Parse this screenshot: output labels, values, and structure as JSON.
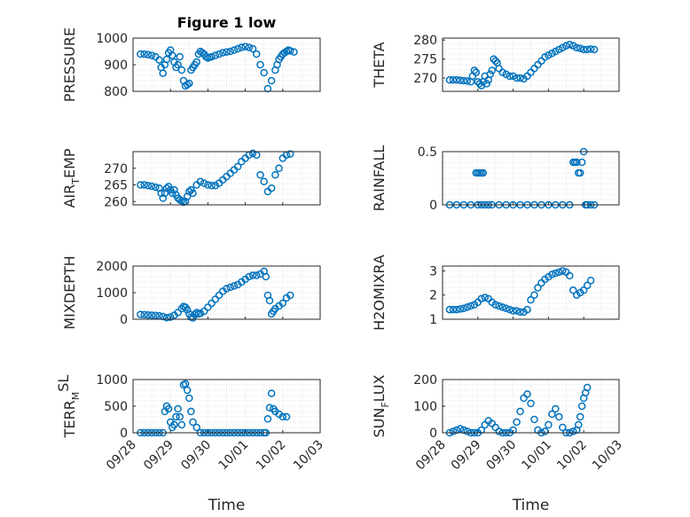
{
  "chart_data": [
    {
      "type": "scatter",
      "title": "Figure 1 low",
      "ylabel": "PRESSURE",
      "ylabel_parts": [
        {
          "t": "PRESSURE",
          "s": "n"
        }
      ],
      "xlabel": "",
      "ylim": [
        800,
        1000
      ],
      "yticks": [
        "800",
        "900",
        "1000"
      ],
      "ytick_values": [
        800,
        900,
        1000
      ],
      "xlim": [
        0,
        5
      ],
      "xticks": [],
      "grid": true,
      "x": [
        0.2,
        0.3,
        0.4,
        0.5,
        0.6,
        0.7,
        0.75,
        0.8,
        0.85,
        0.9,
        0.95,
        1.0,
        1.05,
        1.1,
        1.15,
        1.2,
        1.25,
        1.3,
        1.35,
        1.4,
        1.45,
        1.5,
        1.55,
        1.6,
        1.65,
        1.7,
        1.75,
        1.8,
        1.85,
        1.9,
        1.95,
        2.0,
        2.05,
        2.1,
        2.2,
        2.3,
        2.4,
        2.5,
        2.6,
        2.7,
        2.8,
        2.9,
        3.0,
        3.1,
        3.2,
        3.3,
        3.4,
        3.5,
        3.6,
        3.7,
        3.8,
        3.85,
        3.9,
        3.95,
        4.0,
        4.05,
        4.1,
        4.15,
        4.2,
        4.3
      ],
      "y": [
        940,
        940,
        938,
        935,
        930,
        918,
        890,
        868,
        900,
        920,
        945,
        955,
        935,
        910,
        890,
        900,
        930,
        880,
        840,
        820,
        825,
        830,
        880,
        890,
        900,
        910,
        940,
        950,
        945,
        940,
        930,
        925,
        928,
        930,
        935,
        940,
        945,
        948,
        950,
        955,
        960,
        965,
        968,
        965,
        960,
        940,
        900,
        870,
        810,
        840,
        880,
        900,
        920,
        930,
        940,
        945,
        950,
        955,
        952,
        948
      ]
    },
    {
      "type": "scatter",
      "title": "",
      "ylabel": "THETA",
      "ylabel_parts": [
        {
          "t": "THETA",
          "s": "n"
        }
      ],
      "xlabel": "",
      "ylim": [
        266.5,
        280.5
      ],
      "yticks": [
        "270",
        "275",
        "280"
      ],
      "ytick_values": [
        270,
        275,
        280
      ],
      "xlim": [
        0,
        5
      ],
      "xticks": [],
      "grid": true,
      "x": [
        0.2,
        0.3,
        0.4,
        0.5,
        0.6,
        0.7,
        0.8,
        0.85,
        0.9,
        0.95,
        1.0,
        1.05,
        1.1,
        1.15,
        1.2,
        1.25,
        1.3,
        1.35,
        1.4,
        1.45,
        1.5,
        1.55,
        1.6,
        1.7,
        1.8,
        1.9,
        2.0,
        2.1,
        2.2,
        2.3,
        2.4,
        2.5,
        2.6,
        2.7,
        2.8,
        2.9,
        3.0,
        3.1,
        3.2,
        3.3,
        3.4,
        3.5,
        3.6,
        3.7,
        3.8,
        3.9,
        4.0,
        4.1,
        4.2,
        4.3
      ],
      "y": [
        269.5,
        269.5,
        269.5,
        269.4,
        269.3,
        269.2,
        269.0,
        270.5,
        272.0,
        271.5,
        269.0,
        268.5,
        268.0,
        269.0,
        270.5,
        268.5,
        269.5,
        271.0,
        272.0,
        275.0,
        274.5,
        274.0,
        272.5,
        271.5,
        271.0,
        270.5,
        270.5,
        270.0,
        270.0,
        269.8,
        270.5,
        271.5,
        272.5,
        273.5,
        274.5,
        275.5,
        276.0,
        276.5,
        277.0,
        277.5,
        278.0,
        278.5,
        278.8,
        278.5,
        278.0,
        277.8,
        277.5,
        277.5,
        277.6,
        277.5
      ]
    },
    {
      "type": "scatter",
      "title": "",
      "ylabel": "AIR_TEMP",
      "ylabel_parts": [
        {
          "t": "AIR",
          "s": "n"
        },
        {
          "t": "T",
          "s": "sub"
        },
        {
          "t": "EMP",
          "s": "n"
        }
      ],
      "xlabel": "",
      "ylim": [
        259,
        275
      ],
      "yticks": [
        "260",
        "265",
        "270"
      ],
      "ytick_values": [
        260,
        265,
        270
      ],
      "xlim": [
        0,
        5
      ],
      "xticks": [],
      "grid": true,
      "x": [
        0.2,
        0.3,
        0.4,
        0.5,
        0.6,
        0.7,
        0.75,
        0.8,
        0.85,
        0.9,
        0.95,
        1.0,
        1.05,
        1.1,
        1.15,
        1.2,
        1.25,
        1.3,
        1.35,
        1.4,
        1.45,
        1.5,
        1.55,
        1.6,
        1.7,
        1.8,
        1.9,
        2.0,
        2.1,
        2.2,
        2.3,
        2.4,
        2.5,
        2.6,
        2.7,
        2.8,
        2.9,
        3.0,
        3.1,
        3.2,
        3.3,
        3.4,
        3.5,
        3.6,
        3.7,
        3.8,
        3.9,
        4.0,
        4.1,
        4.2
      ],
      "y": [
        265,
        265,
        264.8,
        264.6,
        264.3,
        264.0,
        262.5,
        261.0,
        262.5,
        264.0,
        264.5,
        263.5,
        262.5,
        263.5,
        262.0,
        261.0,
        260.5,
        260.2,
        259.8,
        260.0,
        261.5,
        263.0,
        263.5,
        262.5,
        265.0,
        266.0,
        265.5,
        265.0,
        264.8,
        264.8,
        265.5,
        266.5,
        267.5,
        268.5,
        269.5,
        270.5,
        272.0,
        273.0,
        274.0,
        274.5,
        274.0,
        268.0,
        266.0,
        263.0,
        264.0,
        268.0,
        270.0,
        273.0,
        274.0,
        274.3
      ]
    },
    {
      "type": "scatter",
      "title": "",
      "ylabel": "RAINFALL",
      "ylabel_parts": [
        {
          "t": "RAINFALL",
          "s": "n"
        }
      ],
      "xlabel": "",
      "ylim": [
        0,
        0.5
      ],
      "yticks": [
        "0",
        "0.5"
      ],
      "ytick_values": [
        0,
        0.5
      ],
      "xlim": [
        0,
        5
      ],
      "xticks": [],
      "grid": true,
      "x": [
        0.2,
        0.4,
        0.6,
        0.8,
        1.0,
        1.1,
        1.2,
        1.3,
        1.4,
        1.6,
        1.8,
        2.0,
        2.2,
        2.4,
        2.6,
        2.8,
        3.0,
        3.2,
        3.4,
        3.6,
        3.7,
        3.75,
        3.8,
        3.85,
        3.9,
        3.95,
        4.0,
        4.05,
        4.1,
        4.2,
        4.3,
        0.95,
        1.0,
        1.05,
        1.1,
        1.15
      ],
      "y": [
        0,
        0,
        0,
        0,
        0,
        0,
        0,
        0,
        0,
        0,
        0,
        0,
        0,
        0,
        0,
        0,
        0,
        0,
        0,
        0,
        0.4,
        0.4,
        0.4,
        0.3,
        0.3,
        0.4,
        0.5,
        0,
        0,
        0,
        0,
        0.3,
        0.3,
        0.3,
        0.3,
        0.3
      ]
    },
    {
      "type": "scatter",
      "title": "",
      "ylabel": "MIXDEPTH",
      "ylabel_parts": [
        {
          "t": "MIXDEPTH",
          "s": "n"
        }
      ],
      "xlabel": "",
      "ylim": [
        0,
        2000
      ],
      "yticks": [
        "0",
        "1000",
        "2000"
      ],
      "ytick_values": [
        0,
        1000,
        2000
      ],
      "xlim": [
        0,
        5
      ],
      "xticks": [],
      "grid": true,
      "x": [
        0.2,
        0.3,
        0.4,
        0.5,
        0.6,
        0.7,
        0.8,
        0.9,
        1.0,
        1.1,
        1.2,
        1.3,
        1.35,
        1.4,
        1.45,
        1.5,
        1.55,
        1.6,
        1.65,
        1.7,
        1.75,
        1.8,
        1.9,
        2.0,
        2.1,
        2.2,
        2.3,
        2.4,
        2.5,
        2.6,
        2.7,
        2.8,
        2.9,
        3.0,
        3.1,
        3.2,
        3.3,
        3.4,
        3.5,
        3.55,
        3.6,
        3.65,
        3.7,
        3.75,
        3.8,
        3.9,
        4.0,
        4.1,
        4.2
      ],
      "y": [
        180,
        170,
        160,
        150,
        140,
        130,
        100,
        60,
        80,
        150,
        250,
        400,
        480,
        450,
        350,
        200,
        80,
        50,
        180,
        250,
        200,
        220,
        300,
        450,
        600,
        750,
        900,
        1050,
        1150,
        1200,
        1250,
        1300,
        1400,
        1500,
        1600,
        1650,
        1650,
        1700,
        1800,
        1600,
        900,
        700,
        200,
        300,
        400,
        500,
        600,
        800,
        900
      ]
    },
    {
      "type": "scatter",
      "title": "",
      "ylabel": "H2OMIXRA",
      "ylabel_parts": [
        {
          "t": "H2OMIXRA",
          "s": "n"
        }
      ],
      "xlabel": "",
      "ylim": [
        1,
        3.2
      ],
      "yticks": [
        "1",
        "2",
        "3"
      ],
      "ytick_values": [
        1,
        2,
        3
      ],
      "xlim": [
        0,
        5
      ],
      "xticks": [],
      "grid": true,
      "x": [
        0.2,
        0.3,
        0.4,
        0.5,
        0.6,
        0.7,
        0.8,
        0.9,
        1.0,
        1.1,
        1.2,
        1.3,
        1.4,
        1.5,
        1.6,
        1.7,
        1.8,
        1.9,
        2.0,
        2.1,
        2.2,
        2.3,
        2.4,
        2.5,
        2.6,
        2.7,
        2.8,
        2.9,
        3.0,
        3.1,
        3.2,
        3.3,
        3.4,
        3.5,
        3.6,
        3.7,
        3.8,
        3.9,
        4.0,
        4.1,
        4.2
      ],
      "y": [
        1.4,
        1.4,
        1.4,
        1.42,
        1.45,
        1.5,
        1.55,
        1.6,
        1.7,
        1.85,
        1.9,
        1.85,
        1.7,
        1.6,
        1.55,
        1.5,
        1.45,
        1.4,
        1.35,
        1.35,
        1.3,
        1.3,
        1.4,
        1.8,
        2.0,
        2.3,
        2.5,
        2.65,
        2.75,
        2.85,
        2.9,
        2.95,
        3.0,
        2.95,
        2.8,
        2.2,
        2.0,
        2.1,
        2.2,
        2.4,
        2.6
      ]
    },
    {
      "type": "scatter",
      "title": "",
      "ylabel": "TERR_MSL",
      "ylabel_parts": [
        {
          "t": "TERR",
          "s": "n"
        },
        {
          "t": "M",
          "s": "sub"
        },
        {
          "t": "SL",
          "s": "sup"
        }
      ],
      "xlabel": "Time",
      "ylim": [
        0,
        1000
      ],
      "yticks": [
        "0",
        "500",
        "1000"
      ],
      "ytick_values": [
        0,
        500,
        1000
      ],
      "xlim": [
        0,
        5
      ],
      "xticks": [
        "09/28",
        "09/29",
        "09/30",
        "10/01",
        "10/02",
        "10/03"
      ],
      "grid": true,
      "x": [
        0.2,
        0.3,
        0.4,
        0.5,
        0.6,
        0.7,
        0.8,
        0.85,
        0.9,
        0.95,
        1.0,
        1.05,
        1.1,
        1.15,
        1.2,
        1.25,
        1.3,
        1.35,
        1.4,
        1.45,
        1.5,
        1.55,
        1.6,
        1.7,
        1.8,
        1.9,
        2.0,
        2.1,
        2.2,
        2.3,
        2.4,
        2.5,
        2.6,
        2.7,
        2.8,
        2.9,
        3.0,
        3.1,
        3.2,
        3.3,
        3.4,
        3.5,
        3.55,
        3.6,
        3.65,
        3.7,
        3.75,
        3.8,
        3.9,
        4.0,
        4.1
      ],
      "y": [
        0,
        0,
        0,
        0,
        0,
        0,
        0,
        400,
        500,
        450,
        200,
        100,
        150,
        300,
        450,
        300,
        150,
        900,
        920,
        800,
        650,
        400,
        200,
        100,
        0,
        0,
        0,
        0,
        0,
        0,
        0,
        0,
        0,
        0,
        0,
        0,
        0,
        0,
        0,
        0,
        0,
        0,
        0,
        260,
        470,
        740,
        450,
        400,
        350,
        300,
        300
      ]
    },
    {
      "type": "scatter",
      "title": "",
      "ylabel": "SUN_FLUX",
      "ylabel_parts": [
        {
          "t": "SUN",
          "s": "n"
        },
        {
          "t": "F",
          "s": "sub"
        },
        {
          "t": "LUX",
          "s": "n"
        }
      ],
      "xlabel": "Time",
      "ylim": [
        0,
        200
      ],
      "yticks": [
        "0",
        "100",
        "200"
      ],
      "ytick_values": [
        0,
        100,
        200
      ],
      "xlim": [
        0,
        5
      ],
      "xticks": [
        "09/28",
        "09/29",
        "09/30",
        "10/01",
        "10/02",
        "10/03"
      ],
      "grid": true,
      "x": [
        0.2,
        0.3,
        0.4,
        0.5,
        0.6,
        0.7,
        0.8,
        0.9,
        1.0,
        1.1,
        1.2,
        1.3,
        1.4,
        1.5,
        1.6,
        1.7,
        1.8,
        1.9,
        2.0,
        2.1,
        2.2,
        2.3,
        2.4,
        2.5,
        2.6,
        2.7,
        2.8,
        2.9,
        3.0,
        3.1,
        3.2,
        3.3,
        3.4,
        3.5,
        3.6,
        3.7,
        3.8,
        3.85,
        3.9,
        3.95,
        4.0,
        4.05,
        4.1
      ],
      "y": [
        0,
        5,
        10,
        15,
        10,
        5,
        0,
        0,
        0,
        10,
        30,
        45,
        35,
        20,
        5,
        0,
        0,
        0,
        10,
        40,
        80,
        130,
        145,
        110,
        50,
        10,
        0,
        5,
        30,
        70,
        90,
        60,
        20,
        0,
        0,
        5,
        10,
        30,
        60,
        100,
        130,
        150,
        170
      ]
    }
  ]
}
